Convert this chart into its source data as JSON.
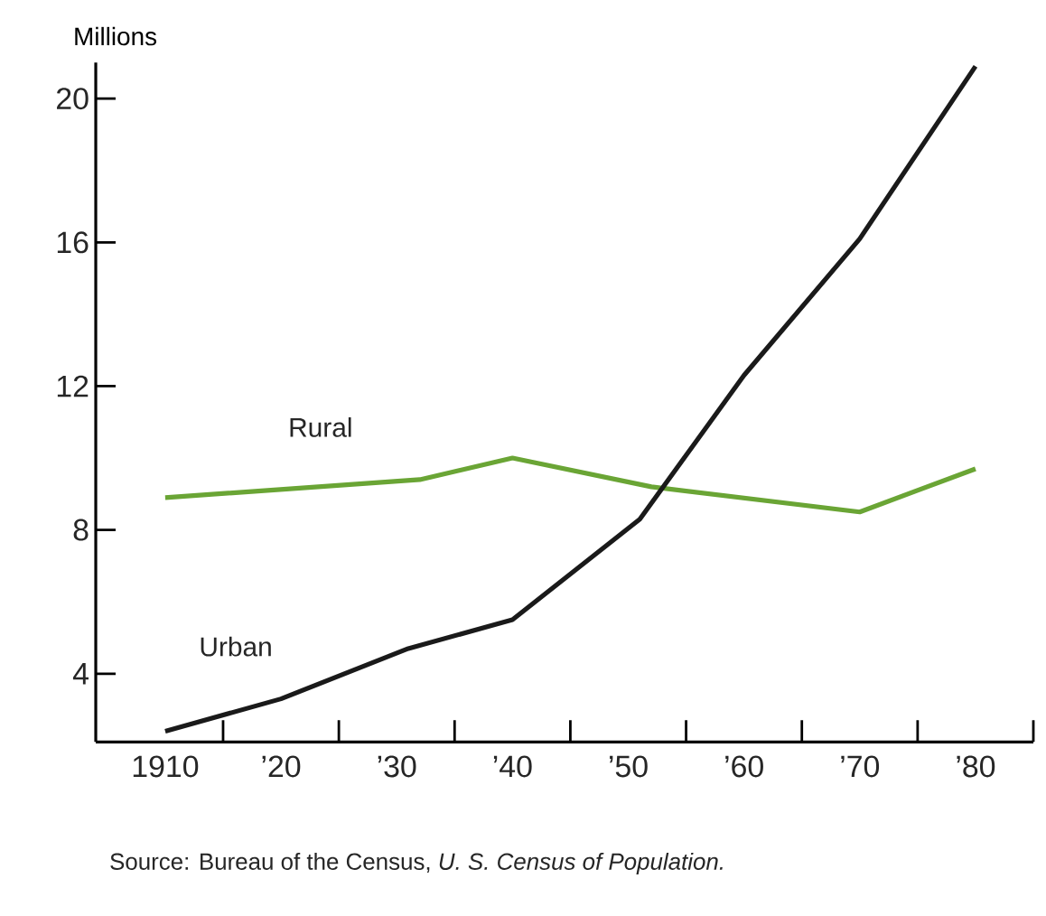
{
  "chart_data": {
    "type": "line",
    "ylabel": "Millions",
    "annotations": [
      "Source: Bureau of the Census, *U. S. Census of Population.*"
    ],
    "xlim": [
      1904,
      1985
    ],
    "ylim": [
      2.1,
      21
    ],
    "xticks": [
      {
        "value": 1910,
        "label": "1910"
      },
      {
        "value": 1920,
        "label": "’20"
      },
      {
        "value": 1930,
        "label": "’30"
      },
      {
        "value": 1940,
        "label": "’40"
      },
      {
        "value": 1950,
        "label": "’50"
      },
      {
        "value": 1960,
        "label": "’60"
      },
      {
        "value": 1970,
        "label": "’70"
      },
      {
        "value": 1980,
        "label": "’80"
      },
      {
        "value": 1915,
        "label": null
      },
      {
        "value": 1925,
        "label": null
      },
      {
        "value": 1935,
        "label": null
      },
      {
        "value": 1945,
        "label": null
      },
      {
        "value": 1955,
        "label": null
      },
      {
        "value": 1965,
        "label": null
      },
      {
        "value": 1975,
        "label": null
      },
      {
        "value": 1985,
        "label": null
      }
    ],
    "yticks": [
      4,
      8,
      12,
      16,
      20
    ],
    "series": [
      {
        "name": "Rural",
        "color": "#6aa535",
        "x": [
          1910,
          1932,
          1940,
          1952,
          1970,
          1980
        ],
        "values": [
          8.9,
          9.4,
          10.0,
          9.2,
          8.5,
          9.7
        ]
      },
      {
        "name": "Urban",
        "color": "#1a1a1a",
        "x": [
          1910,
          1920,
          1931,
          1940,
          1951,
          1960,
          1970,
          1980
        ],
        "values": [
          2.4,
          3.3,
          4.7,
          5.5,
          8.3,
          12.3,
          16.1,
          20.9
        ]
      }
    ]
  }
}
